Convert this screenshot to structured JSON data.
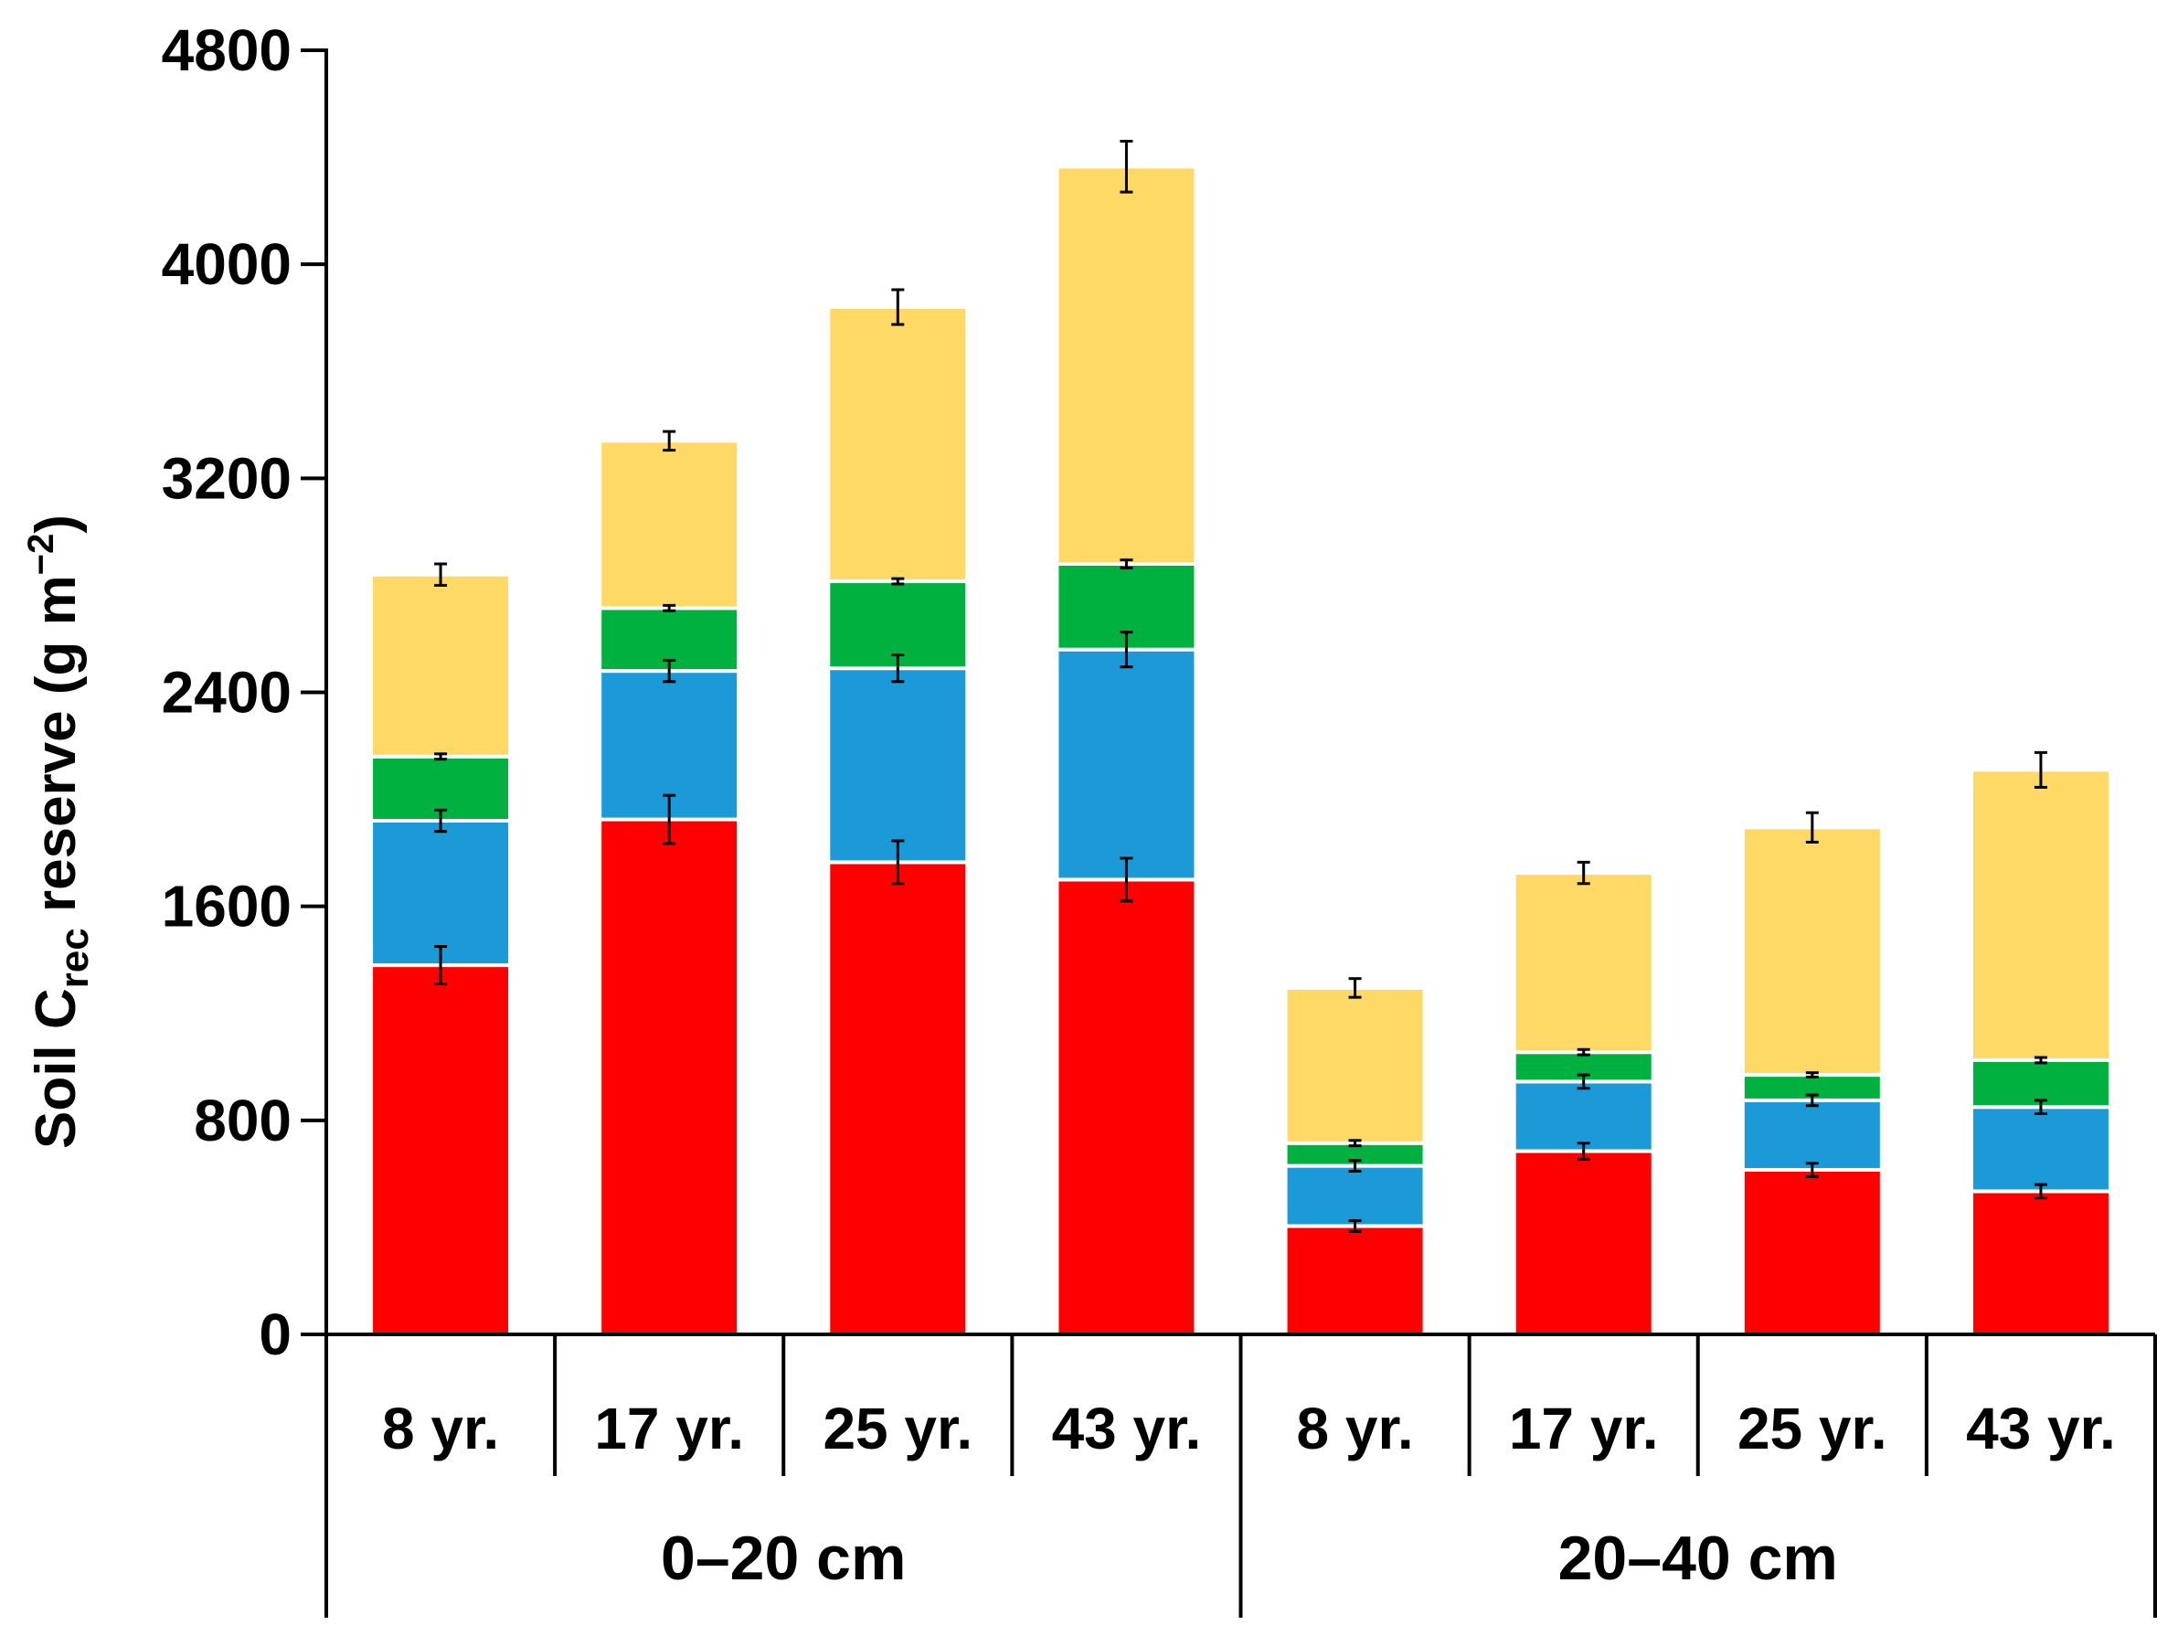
{
  "chart_data": {
    "type": "bar",
    "stacked": true,
    "ylabel": {
      "prefix": "Soil C",
      "subscript": "rec",
      "middle": " reserve (g m",
      "superscript": "−2",
      "suffix": ")"
    },
    "ylim": [
      0,
      4800
    ],
    "yticks": [
      "0",
      "800",
      "1600",
      "2400",
      "3200",
      "4000",
      "4800"
    ],
    "categories": [
      "8 yr.",
      "17 yr.",
      "25 yr.",
      "43 yr.",
      "8 yr.",
      "17 yr.",
      "25 yr.",
      "43 yr."
    ],
    "groups": [
      {
        "label": "0–20 cm",
        "start": 0,
        "count": 4
      },
      {
        "label": "20–40 cm",
        "start": 4,
        "count": 4
      }
    ],
    "series": [
      {
        "name": "red",
        "color": "#ff0000",
        "values": [
          1380,
          1925,
          1765,
          1700,
          405,
          685,
          615,
          535
        ],
        "errors": [
          70,
          90,
          80,
          80,
          20,
          30,
          25,
          25
        ]
      },
      {
        "name": "blue",
        "color": "#1b9ad7",
        "values": [
          540,
          555,
          725,
          860,
          225,
          260,
          260,
          315
        ],
        "errors": [
          40,
          40,
          50,
          65,
          20,
          25,
          20,
          25
        ]
      },
      {
        "name": "green",
        "color": "#00b140",
        "values": [
          240,
          235,
          325,
          320,
          85,
          110,
          95,
          175
        ],
        "errors": [
          10,
          10,
          10,
          15,
          10,
          10,
          8,
          10
        ]
      },
      {
        "name": "yellow",
        "color": "#ffd966",
        "values": [
          680,
          625,
          1025,
          1485,
          580,
          670,
          925,
          1085
        ],
        "errors": [
          40,
          35,
          65,
          95,
          35,
          40,
          55,
          65
        ]
      }
    ]
  }
}
